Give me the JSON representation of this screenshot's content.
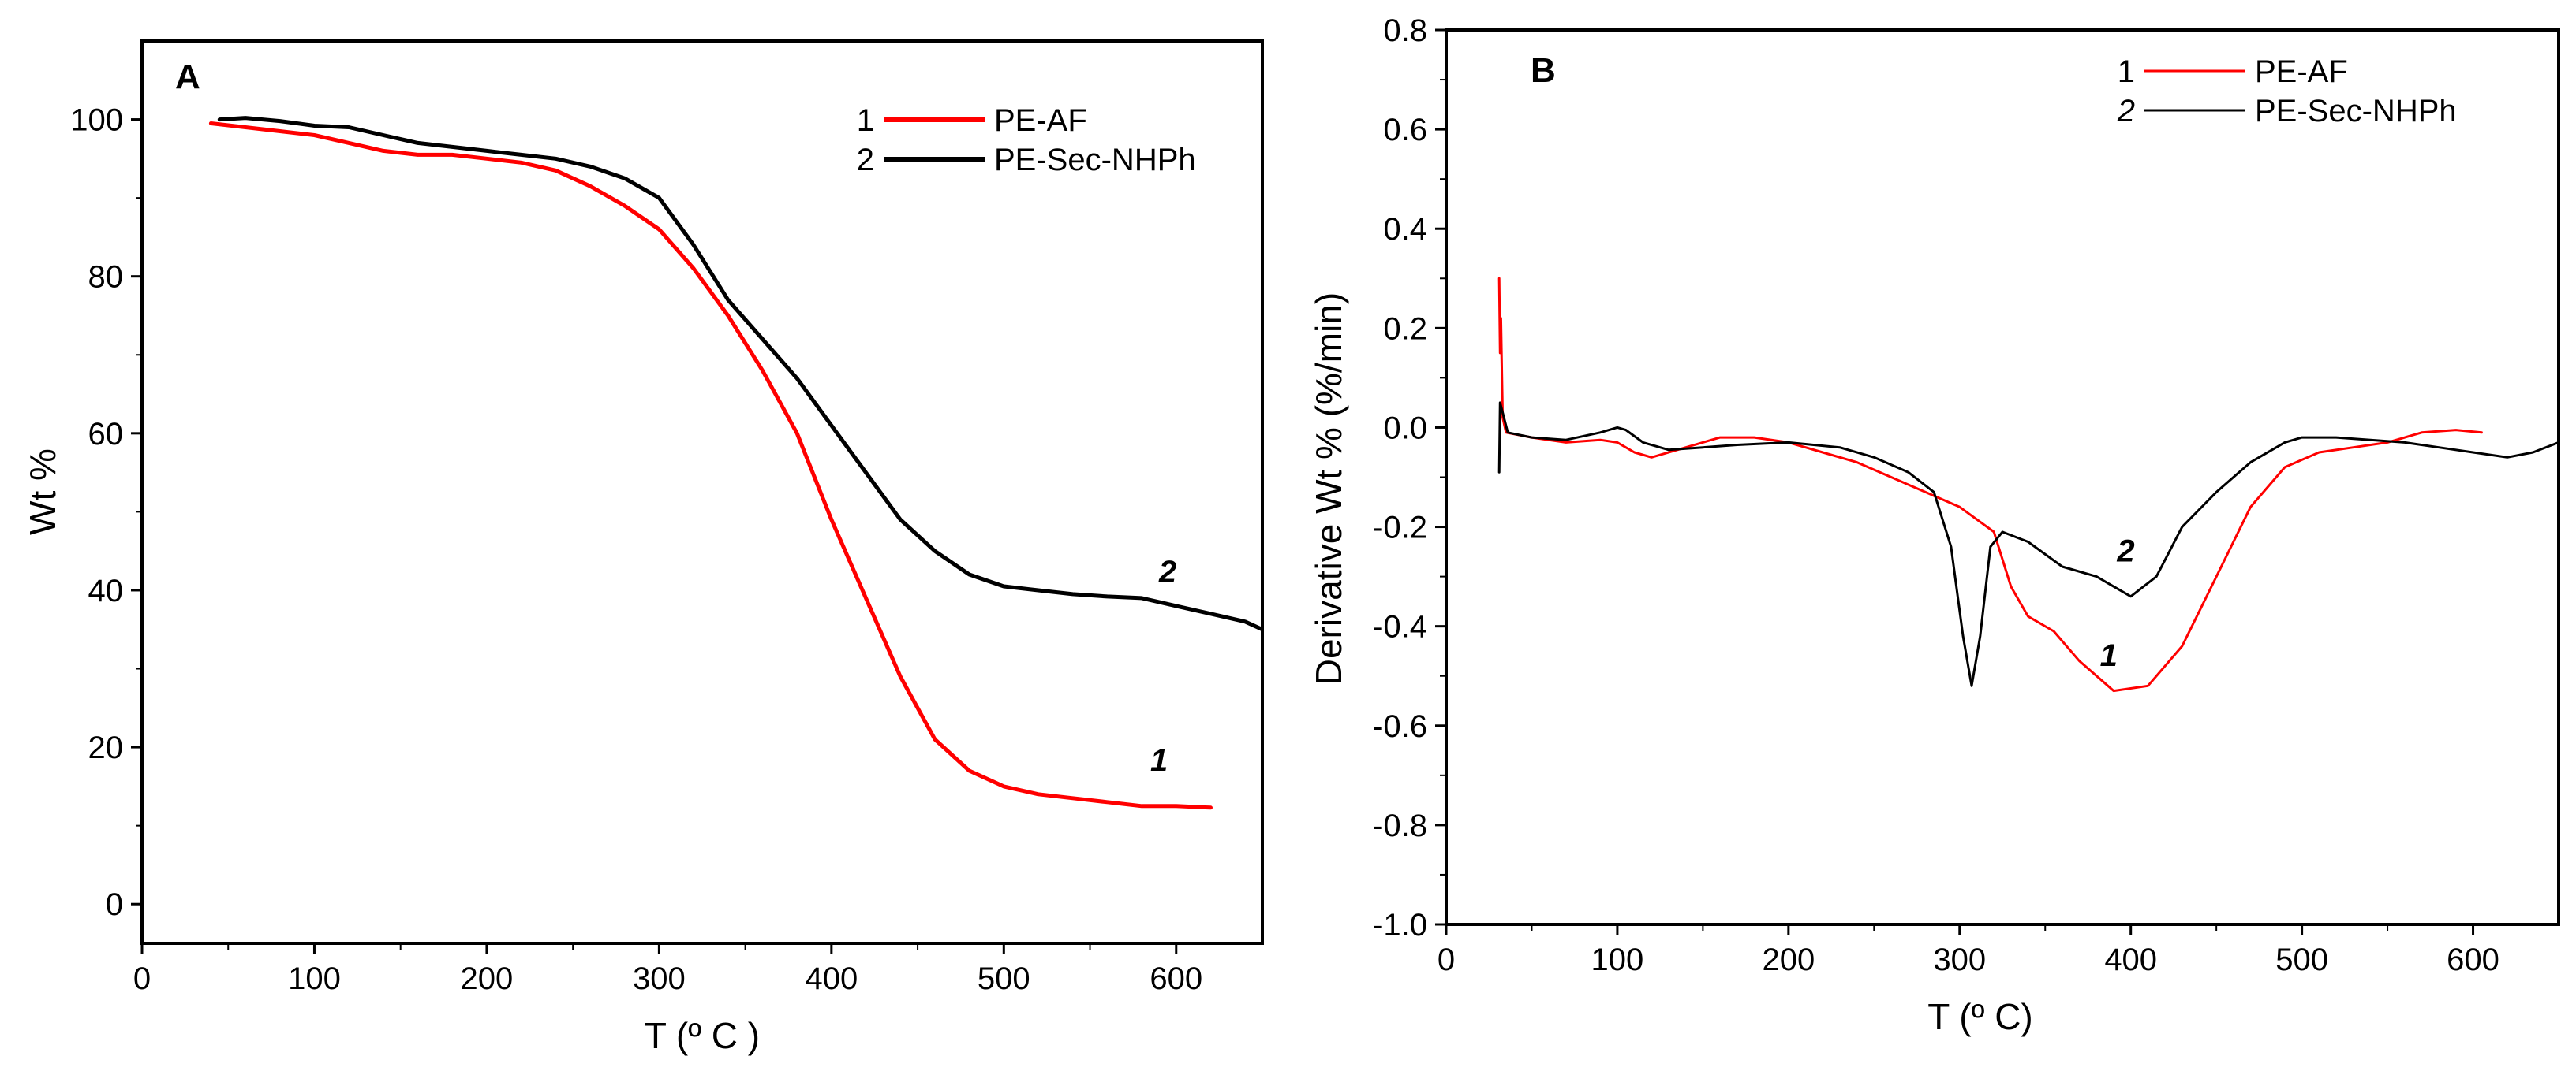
{
  "chart_data": [
    {
      "panel": "A",
      "type": "line",
      "title": "",
      "xlabel": "T  (º C )",
      "ylabel": "Wt %",
      "xlim": [
        0,
        650
      ],
      "ylim": [
        -5,
        110
      ],
      "xticks": [
        0,
        100,
        200,
        300,
        400,
        500,
        600
      ],
      "yticks": [
        0,
        20,
        40,
        60,
        80,
        100
      ],
      "legend": [
        {
          "number": "1",
          "name": "PE-AF",
          "color": "#ff0000"
        },
        {
          "number": "2",
          "name": "PE-Sec-NHPh",
          "color": "#000000"
        }
      ],
      "series": [
        {
          "name": "PE-AF",
          "label": "1",
          "label_at": [
            585,
            17
          ],
          "color": "#ff0000",
          "points": [
            [
              40,
              99.5
            ],
            [
              60,
              99
            ],
            [
              80,
              98.5
            ],
            [
              100,
              98
            ],
            [
              120,
              97
            ],
            [
              140,
              96
            ],
            [
              160,
              95.5
            ],
            [
              180,
              95.5
            ],
            [
              200,
              95
            ],
            [
              220,
              94.5
            ],
            [
              240,
              93.5
            ],
            [
              260,
              91.5
            ],
            [
              280,
              89
            ],
            [
              300,
              86
            ],
            [
              320,
              81
            ],
            [
              340,
              75
            ],
            [
              360,
              68
            ],
            [
              380,
              60
            ],
            [
              400,
              49
            ],
            [
              420,
              39
            ],
            [
              440,
              29
            ],
            [
              460,
              21
            ],
            [
              480,
              17
            ],
            [
              500,
              15
            ],
            [
              520,
              14
            ],
            [
              540,
              13.5
            ],
            [
              560,
              13
            ],
            [
              580,
              12.5
            ],
            [
              600,
              12.5
            ],
            [
              620,
              12.3
            ]
          ]
        },
        {
          "name": "PE-Sec-NHPh",
          "label": "2",
          "label_at": [
            590,
            41
          ],
          "color": "#000000",
          "points": [
            [
              45,
              100
            ],
            [
              60,
              100.2
            ],
            [
              80,
              99.8
            ],
            [
              100,
              99.2
            ],
            [
              120,
              99
            ],
            [
              140,
              98
            ],
            [
              160,
              97
            ],
            [
              180,
              96.5
            ],
            [
              200,
              96
            ],
            [
              220,
              95.5
            ],
            [
              240,
              95
            ],
            [
              260,
              94
            ],
            [
              280,
              92.5
            ],
            [
              300,
              90
            ],
            [
              320,
              84
            ],
            [
              340,
              77
            ],
            [
              360,
              72
            ],
            [
              380,
              67
            ],
            [
              400,
              61
            ],
            [
              420,
              55
            ],
            [
              440,
              49
            ],
            [
              460,
              45
            ],
            [
              480,
              42
            ],
            [
              500,
              40.5
            ],
            [
              520,
              40
            ],
            [
              540,
              39.5
            ],
            [
              560,
              39.2
            ],
            [
              580,
              39
            ],
            [
              600,
              38
            ],
            [
              620,
              37
            ],
            [
              640,
              36
            ],
            [
              650,
              35
            ]
          ]
        }
      ]
    },
    {
      "panel": "B",
      "type": "line",
      "title": "",
      "xlabel": "T  (º C)",
      "ylabel": "Derivative Wt % (%/min)",
      "xlim": [
        0,
        650
      ],
      "ylim": [
        -1.0,
        0.8
      ],
      "xticks": [
        0,
        100,
        200,
        300,
        400,
        500,
        600
      ],
      "yticks": [
        -1.0,
        -0.8,
        -0.6,
        -0.4,
        -0.2,
        0.0,
        0.2,
        0.4,
        0.6,
        0.8
      ],
      "ytick_labels": [
        "-1.0",
        "-0.8",
        "-0.6",
        "-0.4",
        "-0.2",
        "0.0",
        "0.2",
        "0.4",
        "0.6",
        "0.8"
      ],
      "legend": [
        {
          "number": "1",
          "name": "PE-AF",
          "color": "#ff0000"
        },
        {
          "number": "2",
          "name": "PE-Sec-NHPh",
          "color": "#000000"
        }
      ],
      "series": [
        {
          "name": "PE-AF",
          "label": "1",
          "label_at": [
            382,
            -0.48
          ],
          "color": "#ff0000",
          "points": [
            [
              31,
              0.3
            ],
            [
              31.5,
              0.15
            ],
            [
              32,
              0.22
            ],
            [
              33,
              0.02
            ],
            [
              35,
              -0.01
            ],
            [
              50,
              -0.02
            ],
            [
              70,
              -0.03
            ],
            [
              90,
              -0.025
            ],
            [
              100,
              -0.03
            ],
            [
              110,
              -0.05
            ],
            [
              120,
              -0.06
            ],
            [
              140,
              -0.04
            ],
            [
              160,
              -0.02
            ],
            [
              180,
              -0.02
            ],
            [
              200,
              -0.03
            ],
            [
              220,
              -0.05
            ],
            [
              240,
              -0.07
            ],
            [
              260,
              -0.1
            ],
            [
              280,
              -0.13
            ],
            [
              300,
              -0.16
            ],
            [
              320,
              -0.21
            ],
            [
              330,
              -0.32
            ],
            [
              340,
              -0.38
            ],
            [
              355,
              -0.41
            ],
            [
              370,
              -0.47
            ],
            [
              390,
              -0.53
            ],
            [
              410,
              -0.52
            ],
            [
              430,
              -0.44
            ],
            [
              450,
              -0.3
            ],
            [
              470,
              -0.16
            ],
            [
              490,
              -0.08
            ],
            [
              510,
              -0.05
            ],
            [
              530,
              -0.04
            ],
            [
              550,
              -0.03
            ],
            [
              570,
              -0.01
            ],
            [
              590,
              -0.005
            ],
            [
              605,
              -0.01
            ]
          ]
        },
        {
          "name": "PE-Sec-NHPh",
          "label": "2",
          "label_at": [
            392,
            -0.27
          ],
          "color": "#000000",
          "points": [
            [
              31,
              -0.09
            ],
            [
              31.5,
              0.05
            ],
            [
              33,
              0.03
            ],
            [
              36,
              -0.01
            ],
            [
              50,
              -0.02
            ],
            [
              70,
              -0.025
            ],
            [
              90,
              -0.01
            ],
            [
              100,
              0.0
            ],
            [
              105,
              -0.005
            ],
            [
              115,
              -0.03
            ],
            [
              130,
              -0.045
            ],
            [
              150,
              -0.04
            ],
            [
              170,
              -0.035
            ],
            [
              200,
              -0.03
            ],
            [
              230,
              -0.04
            ],
            [
              250,
              -0.06
            ],
            [
              270,
              -0.09
            ],
            [
              285,
              -0.13
            ],
            [
              295,
              -0.24
            ],
            [
              302,
              -0.42
            ],
            [
              307,
              -0.52
            ],
            [
              312,
              -0.42
            ],
            [
              318,
              -0.24
            ],
            [
              325,
              -0.21
            ],
            [
              340,
              -0.23
            ],
            [
              360,
              -0.28
            ],
            [
              380,
              -0.3
            ],
            [
              400,
              -0.34
            ],
            [
              415,
              -0.3
            ],
            [
              430,
              -0.2
            ],
            [
              450,
              -0.13
            ],
            [
              470,
              -0.07
            ],
            [
              490,
              -0.03
            ],
            [
              500,
              -0.02
            ],
            [
              520,
              -0.02
            ],
            [
              540,
              -0.025
            ],
            [
              560,
              -0.03
            ],
            [
              580,
              -0.04
            ],
            [
              600,
              -0.05
            ],
            [
              620,
              -0.06
            ],
            [
              635,
              -0.05
            ],
            [
              650,
              -0.03
            ]
          ]
        }
      ]
    }
  ]
}
